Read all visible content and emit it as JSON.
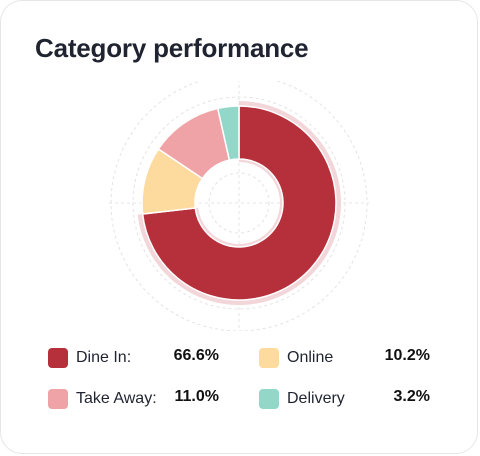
{
  "title": "Category performance",
  "chart_data": {
    "type": "pie",
    "variant": "donut",
    "slices": [
      {
        "label": "Dine In",
        "legend_label": "Dine In:",
        "value": 66.6,
        "display": "66.6%",
        "color": "#b5303a"
      },
      {
        "label": "Online",
        "legend_label": "Online",
        "value": 10.2,
        "display": "10.2%",
        "color": "#fddb9e"
      },
      {
        "label": "Take Away",
        "legend_label": "Take Away:",
        "value": 11.0,
        "display": "11.0%",
        "color": "#f0a3a6"
      },
      {
        "label": "Delivery",
        "legend_label": "Delivery",
        "value": 3.2,
        "display": "3.2%",
        "color": "#93d7c9"
      }
    ],
    "legend_placement": "bottom",
    "grid": true
  }
}
